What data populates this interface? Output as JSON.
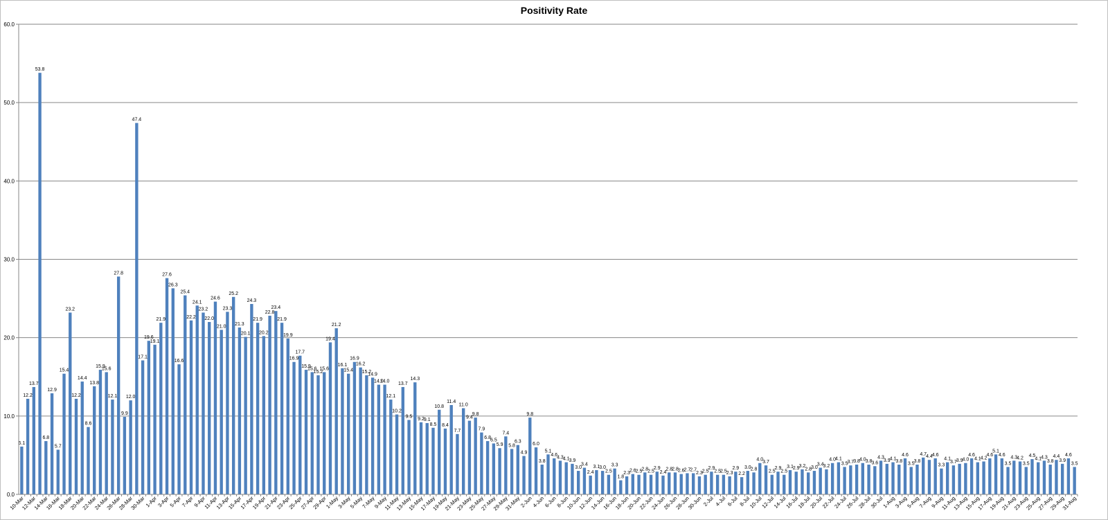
{
  "chart_data": {
    "type": "bar",
    "title": "Positivity Rate",
    "xlabel": "",
    "ylabel": "",
    "ylim": [
      0,
      60
    ],
    "yticks": [
      "0.0",
      "10.0",
      "20.0",
      "30.0",
      "40.0",
      "50.0",
      "60.0"
    ],
    "grid": true,
    "legend": "none",
    "bar_color": "#4f81bd",
    "categories": [
      "10-Mar",
      "11-Mar",
      "12-Mar",
      "13-Mar",
      "14-Mar",
      "15-Mar",
      "16-Mar",
      "17-Mar",
      "18-Mar",
      "19-Mar",
      "20-Mar",
      "21-Mar",
      "22-Mar",
      "23-Mar",
      "24-Mar",
      "25-Mar",
      "26-Mar",
      "27-Mar",
      "28-Mar",
      "29-Mar",
      "30-Mar",
      "31-Mar",
      "1-Apr",
      "2-Apr",
      "3-Apr",
      "4-Apr",
      "5-Apr",
      "6-Apr",
      "7-Apr",
      "8-Apr",
      "9-Apr",
      "10-Apr",
      "11-Apr",
      "12-Apr",
      "13-Apr",
      "14-Apr",
      "15-Apr",
      "16-Apr",
      "17-Apr",
      "18-Apr",
      "19-Apr",
      "20-Apr",
      "21-Apr",
      "22-Apr",
      "23-Apr",
      "24-Apr",
      "25-Apr",
      "26-Apr",
      "27-Apr",
      "28-Apr",
      "29-Apr",
      "30-Apr",
      "1-May",
      "2-May",
      "3-May",
      "4-May",
      "5-May",
      "6-May",
      "7-May",
      "8-May",
      "9-May",
      "10-May",
      "11-May",
      "12-May",
      "13-May",
      "14-May",
      "15-May",
      "16-May",
      "17-May",
      "18-May",
      "19-May",
      "20-May",
      "21-May",
      "22-May",
      "23-May",
      "24-May",
      "25-May",
      "26-May",
      "27-May",
      "28-May",
      "29-May",
      "30-May",
      "31-May",
      "1-Jun",
      "2-Jun",
      "3-Jun",
      "4-Jun",
      "5-Jun",
      "6-Jun",
      "7-Jun",
      "8-Jun",
      "9-Jun",
      "10-Jun",
      "11-Jun",
      "12-Jun",
      "13-Jun",
      "14-Jun",
      "15-Jun",
      "16-Jun",
      "17-Jun",
      "18-Jun",
      "19-Jun",
      "20-Jun",
      "21-Jun",
      "22-Jun",
      "23-Jun",
      "24-Jun",
      "25-Jun",
      "26-Jun",
      "27-Jun",
      "28-Jun",
      "29-Jun",
      "30-Jun",
      "1-Jul",
      "2-Jul",
      "3-Jul",
      "4-Jul",
      "5-Jul",
      "6-Jul",
      "7-Jul",
      "8-Jul",
      "9-Jul",
      "10-Jul",
      "11-Jul",
      "12-Jul",
      "13-Jul",
      "14-Jul",
      "15-Jul",
      "16-Jul",
      "17-Jul",
      "18-Jul",
      "19-Jul",
      "20-Jul",
      "21-Jul",
      "22-Jul",
      "23-Jul",
      "24-Jul",
      "25-Jul",
      "26-Jul",
      "27-Jul",
      "28-Jul",
      "29-Jul",
      "30-Jul",
      "31-Jul",
      "1-Aug",
      "2-Aug",
      "3-Aug",
      "4-Aug",
      "5-Aug",
      "6-Aug",
      "7-Aug",
      "8-Aug",
      "9-Aug",
      "10-Aug",
      "11-Aug",
      "12-Aug",
      "13-Aug",
      "14-Aug",
      "15-Aug",
      "16-Aug",
      "17-Aug",
      "18-Aug",
      "19-Aug",
      "20-Aug",
      "21-Aug",
      "22-Aug",
      "23-Aug",
      "24-Aug",
      "25-Aug",
      "26-Aug",
      "27-Aug",
      "28-Aug",
      "29-Aug",
      "30-Aug",
      "31-Aug"
    ],
    "values": [
      6.1,
      12.2,
      13.7,
      53.8,
      6.8,
      12.9,
      5.7,
      15.4,
      23.2,
      12.2,
      14.4,
      8.6,
      13.8,
      15.9,
      15.6,
      12.1,
      27.8,
      9.9,
      12.0,
      47.4,
      17.1,
      19.6,
      19.1,
      21.9,
      27.6,
      26.3,
      16.6,
      25.4,
      22.2,
      24.1,
      23.2,
      22.0,
      24.6,
      21.0,
      23.3,
      25.2,
      21.3,
      20.1,
      24.3,
      21.9,
      20.2,
      22.8,
      23.4,
      21.9,
      19.9,
      16.9,
      17.7,
      15.9,
      15.6,
      15.2,
      15.6,
      19.4,
      21.2,
      16.1,
      15.4,
      16.9,
      16.2,
      15.2,
      14.9,
      14.0,
      14.0,
      12.1,
      10.2,
      13.7,
      9.5,
      14.3,
      9.2,
      9.1,
      8.5,
      10.8,
      8.4,
      11.4,
      7.7,
      11.0,
      9.4,
      9.8,
      7.9,
      6.8,
      6.5,
      5.9,
      7.4,
      5.8,
      6.3,
      4.9,
      9.8,
      6.0,
      3.8,
      5.1,
      4.6,
      4.3,
      4.1,
      3.9,
      3.0,
      3.4,
      2.4,
      3.1,
      3.0,
      2.5,
      3.3,
      1.8,
      2.3,
      2.6,
      2.5,
      2.8,
      2.5,
      2.9,
      2.4,
      2.8,
      2.8,
      2.6,
      2.7,
      2.7,
      2.3,
      2.5,
      2.9,
      2.5,
      2.5,
      2.3,
      2.9,
      2.2,
      3.0,
      2.8,
      4.0,
      3.7,
      2.5,
      2.9,
      2.5,
      3.1,
      2.9,
      3.2,
      2.8,
      3.0,
      3.4,
      3.2,
      4.0,
      4.1,
      3.5,
      3.7,
      3.8,
      4.0,
      3.8,
      3.6,
      4.3,
      3.9,
      4.1,
      3.8,
      4.6,
      3.5,
      3.8,
      4.7,
      4.4,
      4.6,
      3.3,
      4.1,
      3.7,
      3.9,
      4.0,
      4.6,
      4.1,
      4.2,
      4.6,
      5.1,
      4.6,
      3.5,
      4.3,
      4.2,
      3.5,
      4.5,
      4.1,
      4.3,
      3.8,
      4.4,
      3.9,
      4.6,
      3.5
    ],
    "data_labels": [
      "6.1",
      "12.2",
      "13.7",
      "53.8",
      "6.8",
      "12.9",
      "5.7",
      "15.4",
      "23.2",
      "12.2",
      "14.4",
      "8.6",
      "13.8",
      "15.9",
      "15.6",
      "12.1",
      "27.8",
      "9.9",
      "12.0",
      "47.4",
      "17.1",
      "19.6",
      "19.1",
      "21.9",
      "27.6",
      "26.3",
      "16.6",
      "25.4",
      "22.2",
      "24.1",
      "23.2",
      "22.0",
      "24.6",
      "21.0",
      "23.3",
      "25.2",
      "21.3",
      "20.1",
      "24.3",
      "21.9",
      "20.2",
      "22.8",
      "23.4",
      "21.9",
      "19.9",
      "16.9",
      "17.7",
      "15.9",
      "15.6",
      "15.2",
      "15.6",
      "19.4",
      "21.2",
      "16.1",
      "15.4",
      "16.9",
      "16.2",
      "15.2",
      "14.9",
      "14.0",
      "14.0",
      "12.1",
      "10.2",
      "13.7",
      "9.5",
      "14.3",
      "9.2",
      "9.1",
      "8.5",
      "10.8",
      "8.4",
      "11.4",
      "7.7",
      "11.0",
      "9.4",
      "9.8",
      "7.9",
      "6.8",
      "6.5",
      "5.9",
      "7.4",
      "5.8",
      "6.3",
      "4.9",
      "9.8",
      "6.0",
      "3.8",
      "5.1",
      "4.6",
      "4.3",
      "4.1",
      "3.9",
      "3.0",
      "3.4",
      "2.4",
      "3.1",
      "3.0",
      "2.5",
      "3.3",
      "1.8",
      "2.3",
      "2.6",
      "2.5",
      "2.8",
      "2.5",
      "2.9",
      "2.4",
      "2.8",
      "2.8",
      "2.6",
      "2.7",
      "2.7",
      "2.3",
      "2.5",
      "2.9",
      "2.5",
      "2.5",
      "2.3",
      "2.9",
      "2.2",
      "3.0",
      "2.8",
      "4.0",
      "3.7",
      "2.5",
      "2.9",
      "2.5",
      "3.1",
      "2.9",
      "3.2",
      "2.8",
      "3.0",
      "3.4",
      "3.2",
      "4.0",
      "4.1",
      "3.5",
      "3.7",
      "3.8",
      "4.0",
      "3.8",
      "3.6",
      "4.3",
      "3.9",
      "4.1",
      "3.8",
      "4.6",
      "3.5",
      "3.8",
      "4.7",
      "4.4",
      "4.6",
      "3.3",
      "4.1",
      "3.7",
      "3.9",
      "4.0",
      "4.6",
      "4.1",
      "4.2",
      "4.6",
      "5.1",
      "4.6",
      "3.5",
      "4.3",
      "4.2",
      "3.5",
      "4.5",
      "4.1",
      "4.3",
      "3.8",
      "4.4",
      "3.9",
      "4.6",
      "3.5"
    ],
    "label_every": 2
  }
}
